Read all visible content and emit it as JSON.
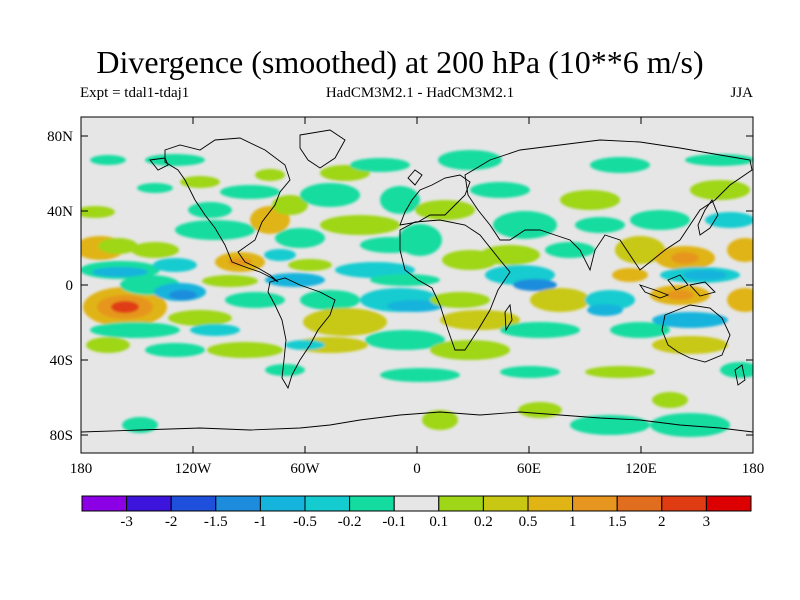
{
  "title": "Divergence (smoothed) at 200 hPa (10**6 m/s)",
  "subtitle_left": "Expt = tdal1-tdaj1",
  "subtitle_center": "HadCM3M2.1 - HadCM3M2.1",
  "subtitle_right": "JJA",
  "y_axis_labels": [
    "80N",
    "40N",
    "0",
    "40S",
    "80S"
  ],
  "x_axis_labels": [
    "180",
    "120W",
    "60W",
    "0",
    "60E",
    "120E",
    "180"
  ],
  "colorbar": {
    "labels": [
      "-3",
      "-2",
      "-1.5",
      "-1",
      "-0.5",
      "-0.2",
      "-0.1",
      "0.1",
      "0.2",
      "0.5",
      "1",
      "1.5",
      "2",
      "3"
    ],
    "colors": [
      "#8c00e6",
      "#3c14dc",
      "#1e50dc",
      "#1e8cdc",
      "#14b4dc",
      "#14ccd0",
      "#14dca0",
      "#e6e6e6",
      "#9fd618",
      "#c8c814",
      "#e0b414",
      "#e6961e",
      "#e06e1e",
      "#e03c14",
      "#dc0000"
    ]
  }
}
